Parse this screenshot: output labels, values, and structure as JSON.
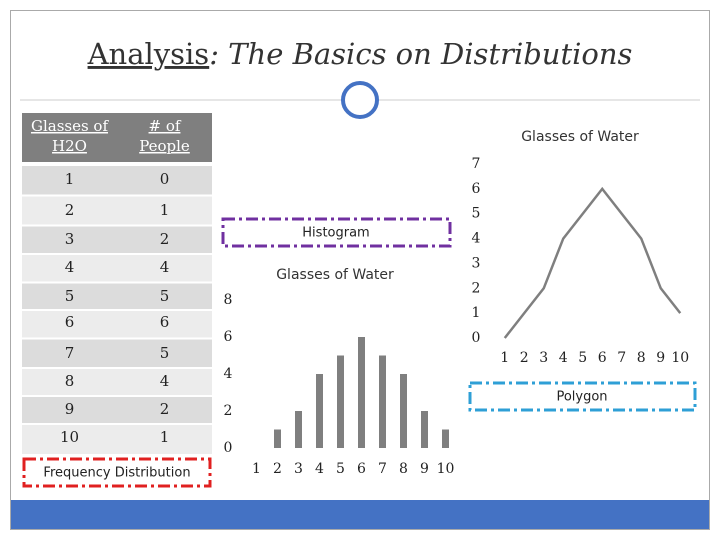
{
  "header": {
    "title": [
      "Analysis",
      ": The Basics on Distributions"
    ]
  },
  "table": {
    "columns": [
      "Glasses of H2O",
      "# of People"
    ],
    "rows": [
      [
        "1",
        "0"
      ],
      [
        "2",
        "1"
      ],
      [
        "3",
        "2"
      ],
      [
        "4",
        "4"
      ],
      [
        "5",
        "5"
      ],
      [
        "6",
        "6"
      ],
      [
        "7",
        "5"
      ],
      [
        "8",
        "4"
      ],
      [
        "9",
        "2"
      ],
      [
        "10",
        "1"
      ]
    ],
    "caption": "Frequency Distribution"
  },
  "chart_data": [
    {
      "type": "bar",
      "title": "Glasses of Water",
      "annotation": "Histogram",
      "categories": [
        "1",
        "2",
        "3",
        "4",
        "5",
        "6",
        "7",
        "8",
        "9",
        "10"
      ],
      "values": [
        0,
        1,
        2,
        4,
        5,
        6,
        5,
        4,
        2,
        1
      ],
      "color": "#7f7f7f",
      "ylim": [
        0,
        8
      ],
      "yticks": [
        0,
        2,
        4,
        6,
        8
      ]
    },
    {
      "type": "line",
      "title": "Glasses of Water",
      "annotation": "Polygon",
      "categories": [
        "1",
        "2",
        "3",
        "4",
        "5",
        "6",
        "7",
        "8",
        "9",
        "10"
      ],
      "values": [
        0,
        1,
        2,
        4,
        5,
        6,
        5,
        4,
        2,
        1
      ],
      "color": "#7f7f7f",
      "ylim": [
        0,
        7
      ],
      "yticks": [
        0,
        1,
        2,
        3,
        4,
        5,
        6,
        7
      ]
    }
  ]
}
